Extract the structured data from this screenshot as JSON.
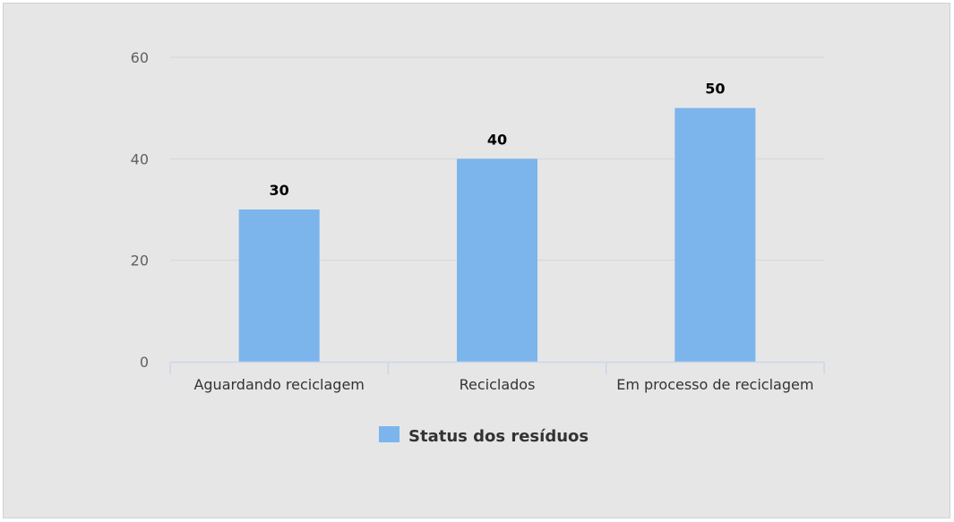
{
  "chart_data": {
    "type": "bar",
    "categories": [
      "Aguardando reciclagem",
      "Reciclados",
      "Em processo de reciclagem"
    ],
    "series": [
      {
        "name": "Status dos resíduos",
        "values": [
          30,
          40,
          50
        ],
        "color": "#7cb5ec"
      }
    ],
    "ylim": [
      0,
      60
    ],
    "yticks": [
      0,
      20,
      40,
      60
    ],
    "grid": true,
    "data_labels": true,
    "legend": "bottom-center"
  }
}
